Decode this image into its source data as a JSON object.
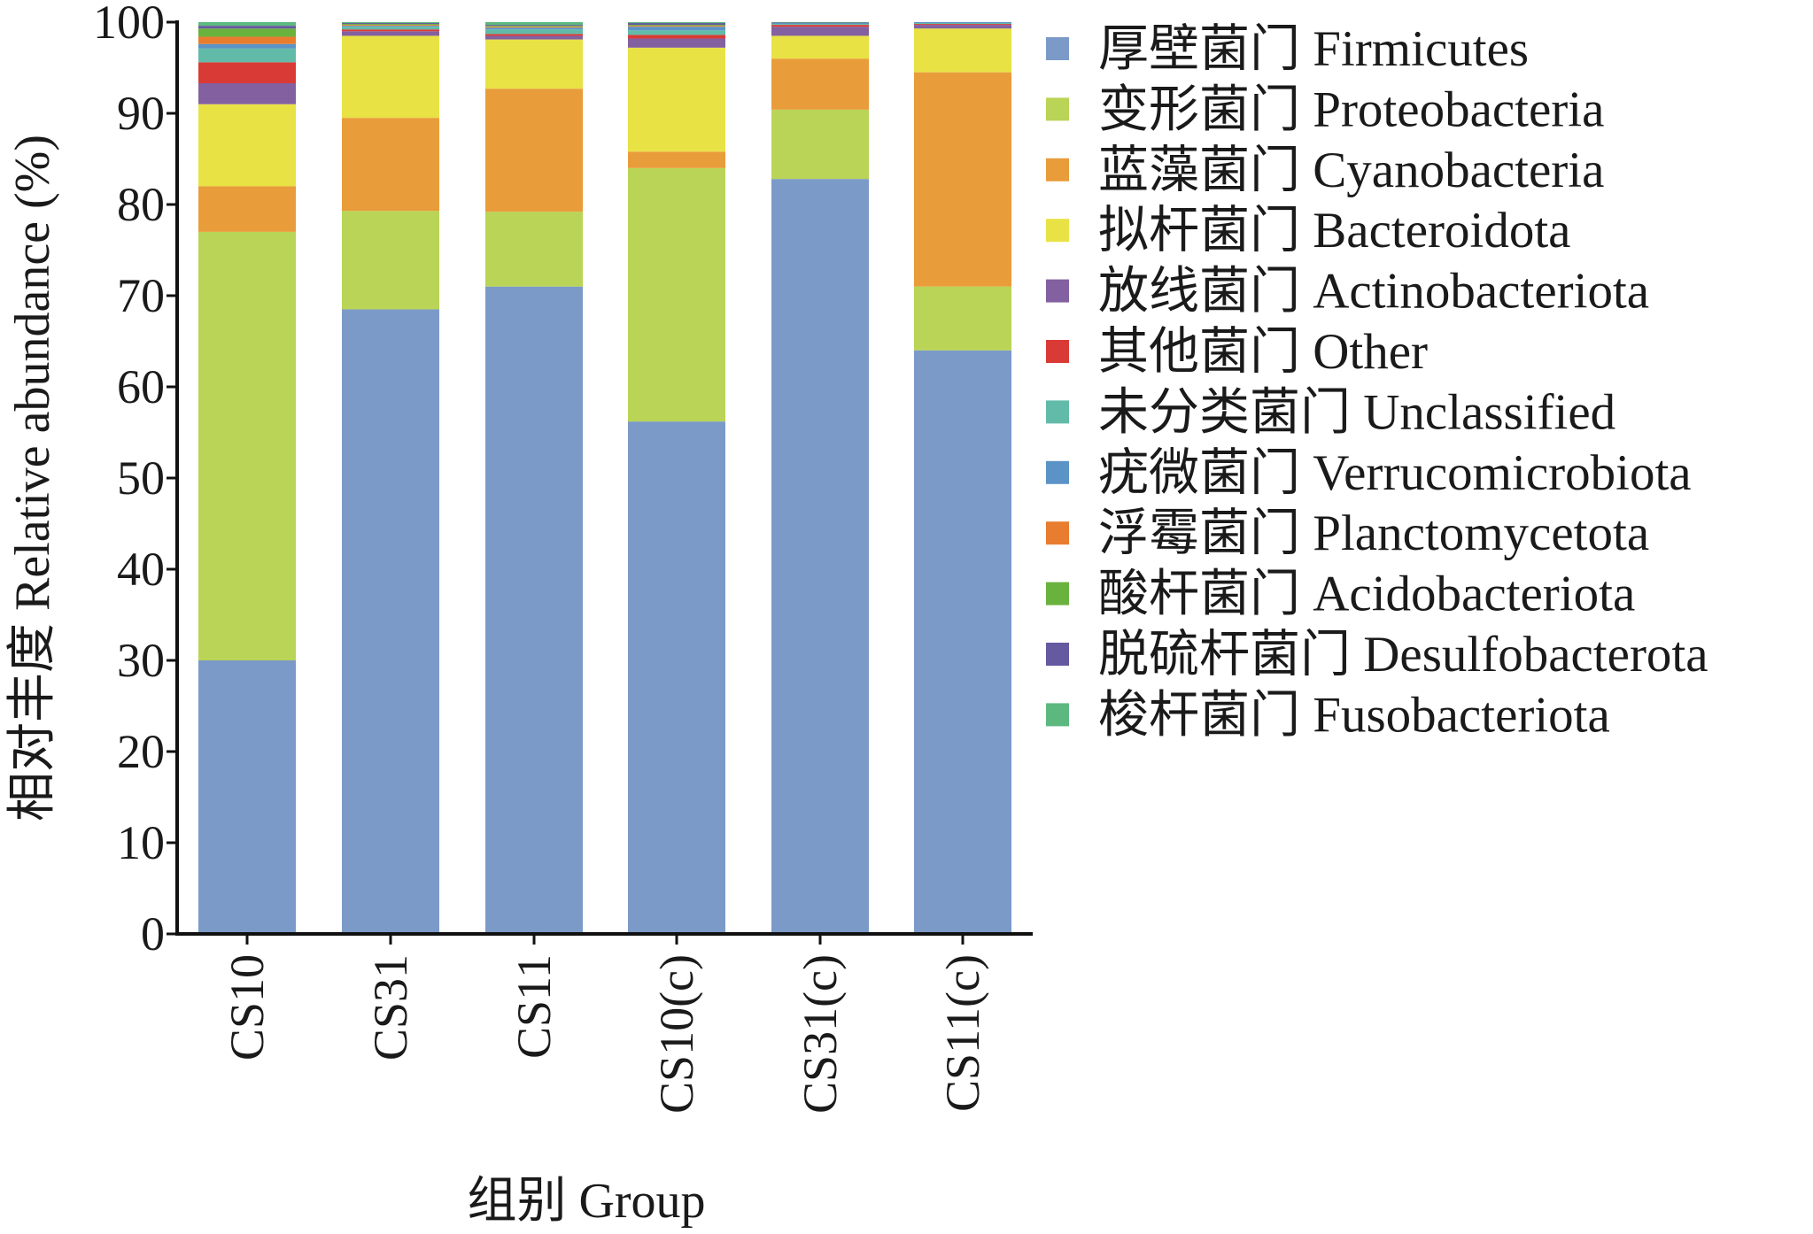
{
  "chart_data": {
    "type": "bar",
    "stacked": true,
    "title": "",
    "xlabel": "组别 Group",
    "ylabel": "相对丰度 Relative abundance (%)",
    "ylim": [
      0,
      100
    ],
    "yticks": [
      0,
      10,
      20,
      30,
      40,
      50,
      60,
      70,
      80,
      90,
      100
    ],
    "grid": false,
    "legend_position": "right",
    "categories": [
      "CS10",
      "CS31",
      "CS11",
      "CS10(c)",
      "CS31(c)",
      "CS11(c)"
    ],
    "series": [
      {
        "name": "厚壁菌门 Firmicutes",
        "color": "#7b9ac8",
        "values": [
          30.0,
          68.5,
          71.0,
          56.2,
          82.8,
          64.0
        ]
      },
      {
        "name": "变形菌门 Proteobacteria",
        "color": "#b9d456",
        "values": [
          47.0,
          10.8,
          8.2,
          27.8,
          7.6,
          7.0
        ]
      },
      {
        "name": "蓝藻菌门 Cyanobacteria",
        "color": "#e99c3a",
        "values": [
          5.0,
          10.2,
          13.5,
          1.8,
          5.6,
          23.5
        ]
      },
      {
        "name": "拟杆菌门 Bacteroidota",
        "color": "#e8e245",
        "values": [
          9.0,
          9.0,
          5.4,
          11.4,
          2.5,
          4.8
        ]
      },
      {
        "name": "放线菌门 Actinobacteriota",
        "color": "#8360a0",
        "values": [
          2.3,
          0.5,
          0.4,
          1.0,
          1.0,
          0.4
        ]
      },
      {
        "name": "其他菌门 Other",
        "color": "#d93a35",
        "values": [
          2.3,
          0.2,
          0.2,
          0.4,
          0.2,
          0.1
        ]
      },
      {
        "name": "未分类菌门 Unclassified",
        "color": "#61bba8",
        "values": [
          1.5,
          0.3,
          0.5,
          0.5,
          0.1,
          0.1
        ]
      },
      {
        "name": "疣微菌门 Verrucomicrobiota",
        "color": "#5b93c7",
        "values": [
          0.5,
          0.1,
          0.2,
          0.4,
          0.1,
          0.1
        ]
      },
      {
        "name": "浮霉菌门 Planctomycetota",
        "color": "#e87c2f",
        "values": [
          0.8,
          0.1,
          0.1,
          0.1,
          0.0,
          0.0
        ]
      },
      {
        "name": "酸杆菌门 Acidobacteriota",
        "color": "#6ab23e",
        "values": [
          0.9,
          0.1,
          0.1,
          0.1,
          0.0,
          0.0
        ]
      },
      {
        "name": "脱硫杆菌门 Desulfobacterota",
        "color": "#6559a0",
        "values": [
          0.3,
          0.1,
          0.1,
          0.2,
          0.05,
          0.0
        ]
      },
      {
        "name": "梭杆菌门 Fusobacteriota",
        "color": "#5cb87f",
        "values": [
          0.4,
          0.1,
          0.3,
          0.1,
          0.05,
          0.0
        ]
      }
    ]
  }
}
